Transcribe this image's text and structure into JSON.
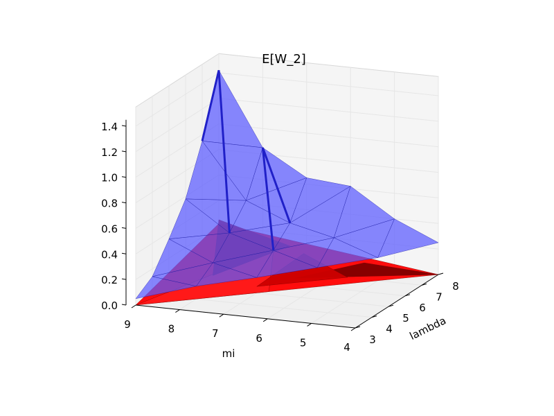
{
  "chart_data": {
    "type": "surface3d",
    "title": "E[W_2]",
    "xlabel": "mi",
    "ylabel": "lambda",
    "zlabel": "",
    "x_ticks": [
      "9",
      "8",
      "7",
      "6",
      "5",
      "4"
    ],
    "y_ticks": [
      "3",
      "4",
      "5",
      "6",
      "7",
      "8"
    ],
    "z_ticks": [
      "0.0",
      "0.2",
      "0.4",
      "0.6",
      "0.8",
      "1.0",
      "1.2",
      "1.4"
    ],
    "xlim": [
      4,
      9
    ],
    "ylim": [
      3,
      8
    ],
    "zlim": [
      0,
      1.4
    ],
    "grid": true,
    "colors": {
      "upper_surface": "#5a5aff",
      "upper_edge": "#1a1aa0",
      "lower_surface": "#ff0000",
      "lower_dark": "#800000",
      "pane": "#f2f2f2",
      "grid": "#e6e6e6"
    },
    "series": [
      {
        "name": "",
        "color": "blue",
        "points": [
          [
            9,
            3,
            0.05
          ],
          [
            9,
            4,
            0.14
          ],
          [
            9,
            5,
            0.35
          ],
          [
            9,
            6,
            0.58
          ],
          [
            9,
            7,
            0.95
          ],
          [
            9,
            8,
            1.42
          ],
          [
            8,
            4,
            0.1
          ],
          [
            8,
            5,
            0.2
          ],
          [
            8,
            6,
            0.35
          ],
          [
            8,
            7,
            0.52
          ],
          [
            8,
            8,
            0.85
          ],
          [
            7,
            5,
            0.12
          ],
          [
            7,
            6,
            0.25
          ],
          [
            7,
            7,
            0.38
          ],
          [
            7,
            8,
            0.65
          ],
          [
            6,
            6,
            0.15
          ],
          [
            6,
            7,
            0.3
          ],
          [
            6,
            8,
            0.62
          ],
          [
            5,
            7,
            0.18
          ],
          [
            5,
            8,
            0.4
          ],
          [
            4,
            8,
            0.25
          ]
        ]
      },
      {
        "name": "",
        "color": "red",
        "points": [
          [
            9,
            3,
            0.0
          ],
          [
            9,
            8,
            0.25
          ],
          [
            4,
            8,
            0.0
          ],
          [
            7,
            6,
            0.02
          ],
          [
            6,
            7,
            0.0
          ]
        ]
      }
    ]
  }
}
